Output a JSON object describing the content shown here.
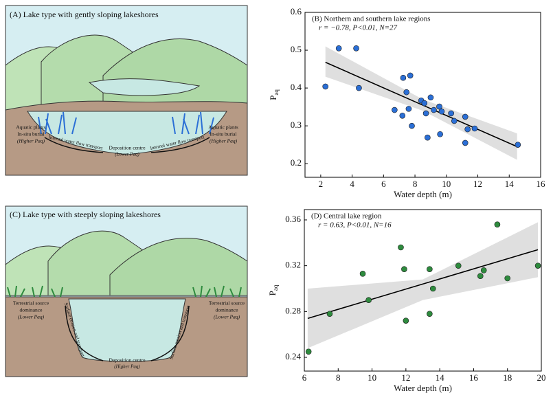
{
  "diagrams": [
    {
      "title": "(A) Lake type with gently sloping lakeshores",
      "left_label": [
        "Aquatic plants",
        "In-situ burial",
        "(Higher Paq)"
      ],
      "right_label": [
        "Aquatic plants",
        "In-situ burial",
        "(Higher Paq)"
      ],
      "left_arrow": "Internal water flow transport",
      "right_arrow": "Internal water flow transport",
      "centre_label": [
        "Deposition centre",
        "(Lower Paq)"
      ]
    },
    {
      "title": "(C) Lake type with steeply sloping lakeshores",
      "left_label": [
        "Terrestrial source",
        "dominance",
        "(Lower Paq)"
      ],
      "right_label": [
        "Terrestrial source",
        "dominance",
        "(Lower Paq)"
      ],
      "left_arrow": "Surface erosion and transport",
      "right_arrow": "Surface erosion and transport",
      "centre_label": [
        "Deposition centre",
        "(Higher Paq)"
      ]
    }
  ],
  "chart_data": [
    {
      "type": "scatter",
      "title": "(B) Northern and southern lake regions",
      "annotation": "r = −0.78, P<0.01, N=27",
      "x_label": "Water depth (m)",
      "y_label": "P",
      "y_label_sub": "aq",
      "xlim": [
        1,
        16
      ],
      "xticks": [
        2,
        4,
        6,
        8,
        10,
        12,
        14,
        16
      ],
      "ylim": [
        0.164,
        0.6
      ],
      "yticks": [
        0.2,
        0.3,
        0.4,
        0.5,
        0.6
      ],
      "series": [
        {
          "color": "#2b6fd6",
          "x": [
            2.3,
            3.15,
            4.26,
            4.43,
            6.7,
            7.2,
            7.25,
            7.46,
            7.7,
            7.6,
            7.8,
            8.4,
            8.6,
            8.7,
            8.8,
            9.0,
            9.2,
            9.55,
            9.6,
            9.7,
            10.3,
            10.5,
            11.2,
            11.2,
            11.35,
            11.8,
            14.55
          ],
          "values": [
            0.404,
            0.505,
            0.505,
            0.4,
            0.342,
            0.327,
            0.427,
            0.389,
            0.433,
            0.345,
            0.3,
            0.367,
            0.36,
            0.333,
            0.269,
            0.375,
            0.342,
            0.351,
            0.278,
            0.338,
            0.333,
            0.313,
            0.324,
            0.255,
            0.291,
            0.293,
            0.25
          ]
        }
      ],
      "trend": {
        "x": [
          2.3,
          14.5
        ],
        "values": [
          0.468,
          0.245
        ]
      },
      "band": {
        "x": [
          2.3,
          8.5,
          14.5
        ],
        "lower": [
          0.43,
          0.34,
          0.21
        ],
        "upper": [
          0.51,
          0.37,
          0.28
        ]
      }
    },
    {
      "type": "scatter",
      "title": "(D) Central lake region",
      "annotation": "r = 0.63, P<0.01, N=16",
      "x_label": "Water depth (m)",
      "y_label": "P",
      "y_label_sub": "aq",
      "xlim": [
        6,
        20
      ],
      "xticks": [
        6,
        8,
        10,
        12,
        14,
        16,
        18,
        20
      ],
      "ylim": [
        0.228,
        0.369
      ],
      "yticks": [
        0.24,
        0.28,
        0.32,
        0.36
      ],
      "series": [
        {
          "color": "#2e8b3e",
          "x": [
            6.25,
            7.5,
            9.45,
            9.8,
            11.7,
            11.9,
            12.0,
            13.4,
            13.4,
            13.6,
            15.1,
            16.4,
            16.6,
            17.4,
            18.0,
            19.8
          ],
          "values": [
            0.245,
            0.278,
            0.313,
            0.29,
            0.336,
            0.317,
            0.272,
            0.317,
            0.278,
            0.3,
            0.32,
            0.311,
            0.316,
            0.356,
            0.309,
            0.32
          ]
        }
      ],
      "trend": {
        "x": [
          6.2,
          19.8
        ],
        "values": [
          0.274,
          0.334
        ]
      },
      "band": {
        "x": [
          6.2,
          13,
          19.8
        ],
        "lower": [
          0.248,
          0.29,
          0.31
        ],
        "upper": [
          0.3,
          0.308,
          0.358
        ]
      }
    }
  ]
}
